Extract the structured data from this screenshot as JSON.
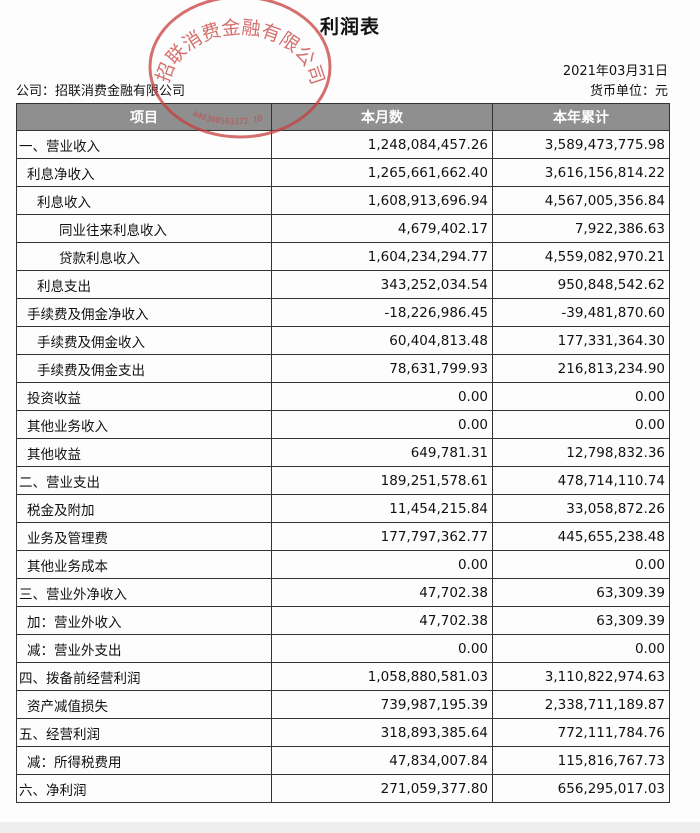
{
  "title": "利润表",
  "date": "2021年03月31日",
  "company": "公司：招联消费金融有限公司",
  "currency_unit": "货币单位：元",
  "stamp": {
    "text": "招联消费金融有限公司",
    "number": "440300503372 10",
    "color": "#c8403f"
  },
  "table": {
    "headers": [
      "项目",
      "本月数",
      "本年累计"
    ],
    "rows": [
      {
        "item": "一、营业收入",
        "indent": 0,
        "month": "1,248,084,457.26",
        "ytd": "3,589,473,775.98"
      },
      {
        "item": "利息净收入",
        "indent": 1,
        "month": "1,265,661,662.40",
        "ytd": "3,616,156,814.22"
      },
      {
        "item": "利息收入",
        "indent": 2,
        "month": "1,608,913,696.94",
        "ytd": "4,567,005,356.84"
      },
      {
        "item": "同业往来利息收入",
        "indent": 3,
        "month": "4,679,402.17",
        "ytd": "7,922,386.63"
      },
      {
        "item": "贷款利息收入",
        "indent": 3,
        "month": "1,604,234,294.77",
        "ytd": "4,559,082,970.21"
      },
      {
        "item": "利息支出",
        "indent": 2,
        "month": "343,252,034.54",
        "ytd": "950,848,542.62"
      },
      {
        "item": "手续费及佣金净收入",
        "indent": 1,
        "month": "-18,226,986.45",
        "ytd": "-39,481,870.60"
      },
      {
        "item": "手续费及佣金收入",
        "indent": 2,
        "month": "60,404,813.48",
        "ytd": "177,331,364.30"
      },
      {
        "item": "手续费及佣金支出",
        "indent": 2,
        "month": "78,631,799.93",
        "ytd": "216,813,234.90"
      },
      {
        "item": "投资收益",
        "indent": 1,
        "month": "0.00",
        "ytd": "0.00"
      },
      {
        "item": "其他业务收入",
        "indent": 1,
        "month": "0.00",
        "ytd": "0.00"
      },
      {
        "item": "其他收益",
        "indent": 1,
        "month": "649,781.31",
        "ytd": "12,798,832.36"
      },
      {
        "item": "二、营业支出",
        "indent": 0,
        "month": "189,251,578.61",
        "ytd": "478,714,110.74"
      },
      {
        "item": "税金及附加",
        "indent": 1,
        "month": "11,454,215.84",
        "ytd": "33,058,872.26"
      },
      {
        "item": "业务及管理费",
        "indent": 1,
        "month": "177,797,362.77",
        "ytd": "445,655,238.48"
      },
      {
        "item": "其他业务成本",
        "indent": 1,
        "month": "0.00",
        "ytd": "0.00"
      },
      {
        "item": "三、营业外净收入",
        "indent": 0,
        "month": "47,702.38",
        "ytd": "63,309.39"
      },
      {
        "item": "加：营业外收入",
        "indent": 1,
        "month": "47,702.38",
        "ytd": "63,309.39"
      },
      {
        "item": "减：营业外支出",
        "indent": 1,
        "month": "0.00",
        "ytd": "0.00"
      },
      {
        "item": "四、拨备前经营利润",
        "indent": 0,
        "month": "1,058,880,581.03",
        "ytd": "3,110,822,974.63"
      },
      {
        "item": "资产减值损失",
        "indent": 1,
        "month": "739,987,195.39",
        "ytd": "2,338,711,189.87"
      },
      {
        "item": "五、经营利润",
        "indent": 0,
        "month": "318,893,385.64",
        "ytd": "772,111,784.76"
      },
      {
        "item": "减：所得税费用",
        "indent": 1,
        "month": "47,834,007.84",
        "ytd": "115,816,767.73"
      },
      {
        "item": "六、净利润",
        "indent": 0,
        "month": "271,059,377.80",
        "ytd": "656,295,017.03"
      }
    ]
  }
}
